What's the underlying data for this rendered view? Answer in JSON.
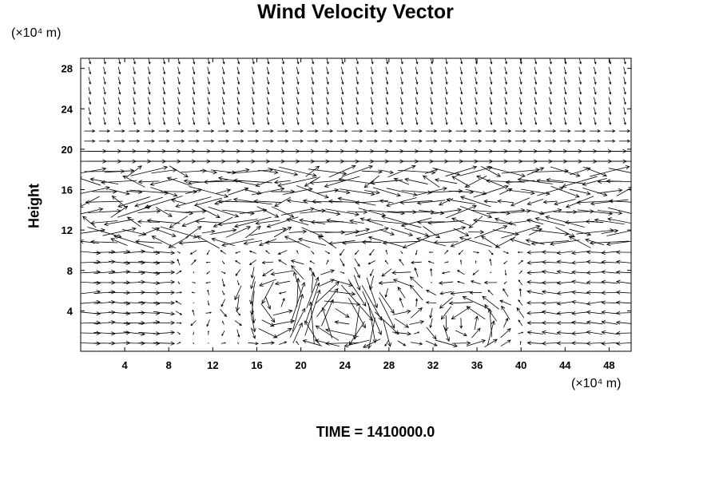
{
  "chart_data": {
    "type": "vector-field",
    "title": "Wind Velocity Vector",
    "xunit": "(×10⁴ m)",
    "yunit": "(×10⁴ m)",
    "ylabel": "Height",
    "xlim": [
      0,
      50
    ],
    "ylim": [
      0,
      29
    ],
    "xticks": [
      4,
      8,
      12,
      16,
      20,
      24,
      28,
      32,
      36,
      40,
      44,
      48
    ],
    "yticks": [
      4,
      8,
      12,
      16,
      20,
      24,
      28
    ],
    "grid": false,
    "annotation": "TIME = 1410000.0"
  }
}
